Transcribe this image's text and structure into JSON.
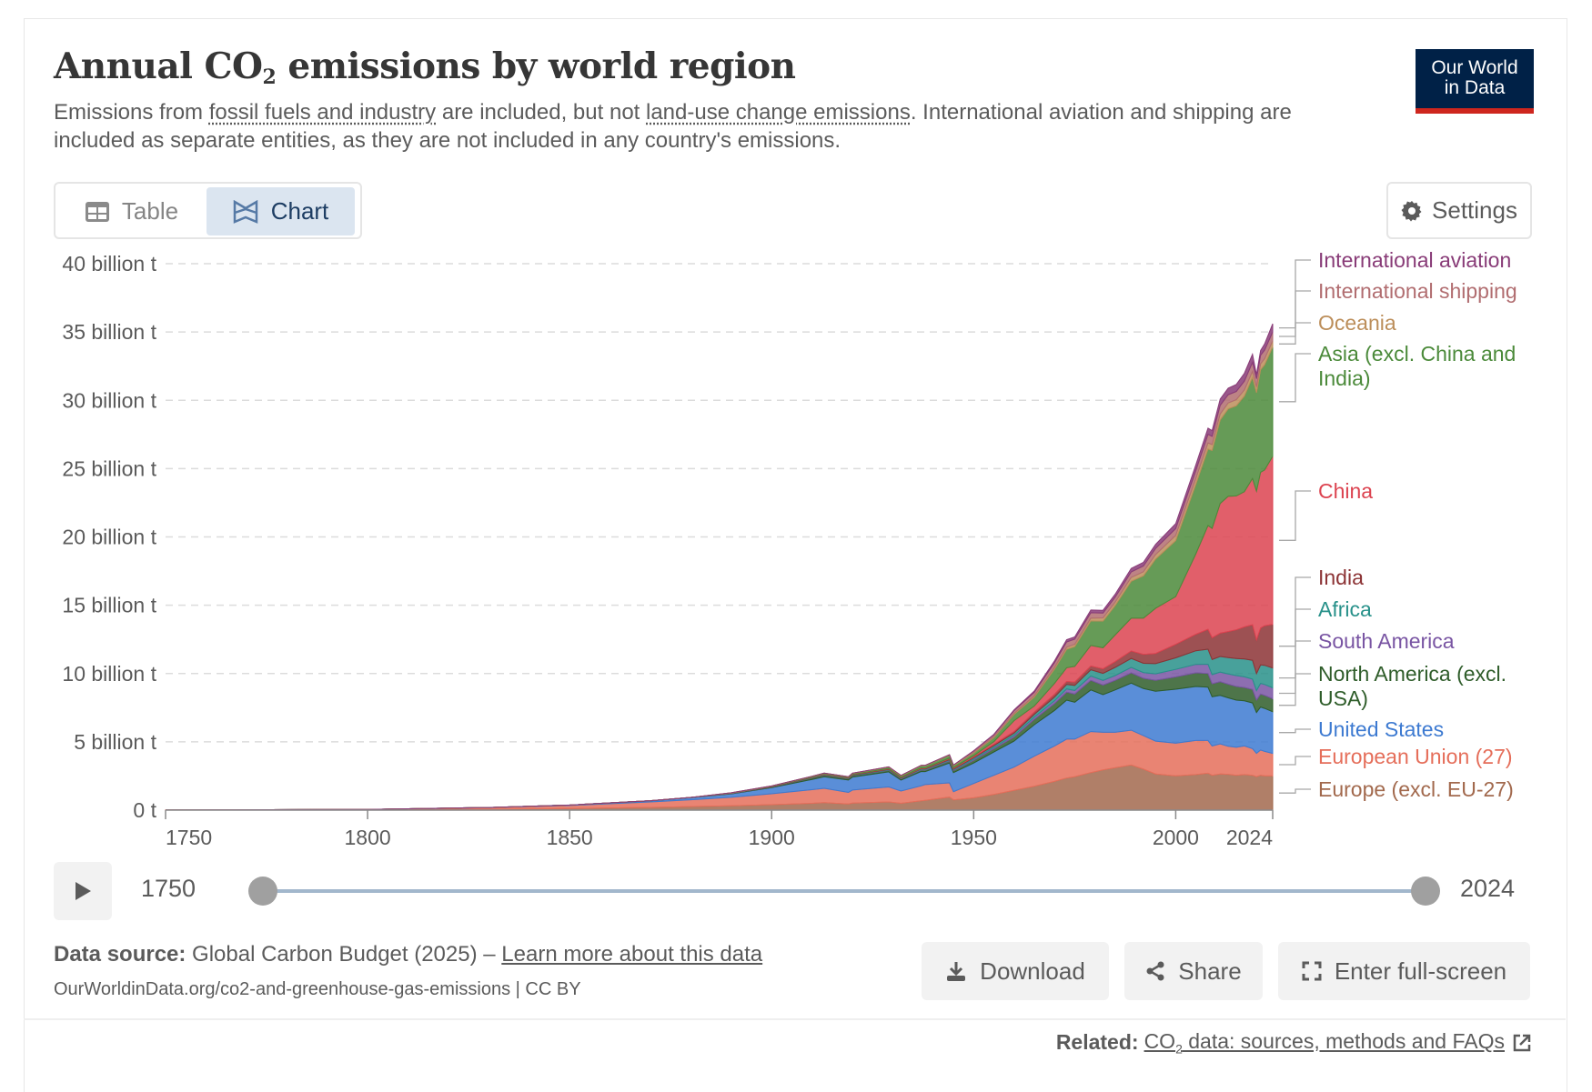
{
  "header": {
    "title_prefix": "Annual CO",
    "title_sub": "2",
    "title_suffix": " emissions by world region",
    "subtitle_parts": {
      "p1": "Emissions from ",
      "link1": "fossil fuels and industry",
      "p2": " are included, but not ",
      "link2": "land-use change emissions",
      "p3": ". International aviation and shipping are included as separate entities, as they are not included in any country's emissions."
    },
    "logo_line1": "Our World",
    "logo_line2": "in Data"
  },
  "tabs": {
    "table_label": "Table",
    "chart_label": "Chart",
    "active": "Chart"
  },
  "settings_label": "Settings",
  "timeline": {
    "start_label": "1750",
    "end_label": "2024",
    "start_value": 1750,
    "end_value": 2024
  },
  "footer": {
    "source_label": "Data source:",
    "source_text": " Global Carbon Budget (2025) – ",
    "learn_more": "Learn more about this data",
    "url_text": "OurWorldinData.org/co2-and-greenhouse-gas-emissions | CC BY",
    "download_label": "Download",
    "share_label": "Share",
    "fullscreen_label": "Enter full-screen",
    "related_label": "Related:",
    "related_link_prefix": "CO",
    "related_link_sub": "2",
    "related_link_suffix": " data: sources, methods and FAQs"
  },
  "chart_data": {
    "type": "area",
    "stacked": true,
    "title": "Annual CO2 emissions by world region",
    "xlabel": "",
    "ylabel": "",
    "xlim": [
      1750,
      2024
    ],
    "ylim": [
      0,
      40
    ],
    "unit": "billion t",
    "x_ticks": [
      1750,
      1800,
      1850,
      1900,
      1950,
      2000,
      2024
    ],
    "y_ticks": [
      0,
      5,
      10,
      15,
      20,
      25,
      30,
      35,
      40
    ],
    "y_tick_labels": [
      "0 t",
      "5 billion t",
      "10 billion t",
      "15 billion t",
      "20 billion t",
      "25 billion t",
      "30 billion t",
      "35 billion t",
      "40 billion t"
    ],
    "grid": "horizontal-dashed",
    "legend": "right-inline",
    "x": [
      1750,
      1800,
      1830,
      1850,
      1870,
      1880,
      1890,
      1900,
      1910,
      1913,
      1919,
      1920,
      1929,
      1932,
      1937,
      1938,
      1944,
      1945,
      1950,
      1955,
      1960,
      1965,
      1970,
      1973,
      1975,
      1979,
      1982,
      1985,
      1989,
      1992,
      1995,
      2000,
      2005,
      2008,
      2009,
      2011,
      2013,
      2015,
      2017,
      2019,
      2020,
      2021,
      2022,
      2024
    ],
    "series": [
      {
        "name": "Europe (excl. EU-27)",
        "color": "#a2694d",
        "values": [
          0.0,
          0.02,
          0.06,
          0.12,
          0.2,
          0.26,
          0.32,
          0.4,
          0.5,
          0.55,
          0.45,
          0.52,
          0.6,
          0.5,
          0.68,
          0.72,
          0.95,
          0.75,
          0.9,
          1.15,
          1.45,
          1.75,
          2.1,
          2.35,
          2.45,
          2.75,
          2.95,
          3.1,
          3.3,
          3.0,
          2.65,
          2.5,
          2.6,
          2.7,
          2.55,
          2.65,
          2.62,
          2.55,
          2.6,
          2.55,
          2.45,
          2.55,
          2.5,
          2.5
        ]
      },
      {
        "name": "European Union (27)",
        "color": "#e56e5a",
        "values": [
          0.01,
          0.03,
          0.12,
          0.22,
          0.4,
          0.5,
          0.62,
          0.8,
          1.0,
          1.05,
          0.85,
          0.95,
          1.1,
          0.9,
          1.1,
          1.15,
          1.05,
          0.6,
          1.05,
          1.4,
          1.7,
          2.2,
          2.6,
          2.85,
          2.75,
          3.0,
          2.75,
          2.6,
          2.55,
          2.45,
          2.4,
          2.4,
          2.5,
          2.4,
          2.15,
          2.2,
          2.05,
          2.05,
          2.1,
          1.95,
          1.7,
          1.85,
          1.8,
          1.65
        ]
      },
      {
        "name": "United States",
        "color": "#3d7ad1",
        "values": [
          0.0,
          0.0,
          0.01,
          0.03,
          0.08,
          0.15,
          0.25,
          0.45,
          0.75,
          0.85,
          0.9,
          0.95,
          1.1,
          0.8,
          1.05,
          0.95,
          1.45,
          1.4,
          1.5,
          1.7,
          1.9,
          2.3,
          2.6,
          2.85,
          2.7,
          3.05,
          2.75,
          3.1,
          3.45,
          3.45,
          3.65,
          3.95,
          3.95,
          3.9,
          3.6,
          3.55,
          3.55,
          3.45,
          3.3,
          3.35,
          3.0,
          3.15,
          3.15,
          3.05
        ]
      },
      {
        "name": "North America (excl. USA)",
        "color": "#2f5d2a",
        "values": [
          0.0,
          0.0,
          0.0,
          0.0,
          0.01,
          0.02,
          0.03,
          0.05,
          0.1,
          0.11,
          0.1,
          0.11,
          0.12,
          0.09,
          0.11,
          0.11,
          0.15,
          0.15,
          0.2,
          0.25,
          0.3,
          0.4,
          0.5,
          0.58,
          0.6,
          0.7,
          0.7,
          0.7,
          0.75,
          0.75,
          0.8,
          0.9,
          1.0,
          1.0,
          0.95,
          1.0,
          1.0,
          1.0,
          0.98,
          0.98,
          0.9,
          0.95,
          0.95,
          0.95
        ]
      },
      {
        "name": "South America",
        "color": "#7955a3",
        "values": [
          0.0,
          0.0,
          0.0,
          0.0,
          0.0,
          0.0,
          0.01,
          0.01,
          0.02,
          0.02,
          0.02,
          0.02,
          0.03,
          0.03,
          0.04,
          0.04,
          0.05,
          0.05,
          0.08,
          0.1,
          0.13,
          0.16,
          0.2,
          0.24,
          0.26,
          0.32,
          0.34,
          0.35,
          0.4,
          0.42,
          0.48,
          0.55,
          0.62,
          0.68,
          0.67,
          0.7,
          0.75,
          0.8,
          0.78,
          0.76,
          0.7,
          0.78,
          0.8,
          0.8
        ]
      },
      {
        "name": "Africa",
        "color": "#28918a",
        "values": [
          0.0,
          0.0,
          0.0,
          0.0,
          0.0,
          0.0,
          0.01,
          0.01,
          0.02,
          0.02,
          0.02,
          0.02,
          0.03,
          0.03,
          0.04,
          0.04,
          0.05,
          0.05,
          0.1,
          0.12,
          0.15,
          0.2,
          0.28,
          0.33,
          0.37,
          0.45,
          0.52,
          0.6,
          0.65,
          0.68,
          0.74,
          0.85,
          1.0,
          1.1,
          1.1,
          1.15,
          1.2,
          1.25,
          1.3,
          1.38,
          1.25,
          1.35,
          1.4,
          1.45
        ]
      },
      {
        "name": "India",
        "color": "#8c3335",
        "values": [
          0.0,
          0.0,
          0.0,
          0.0,
          0.0,
          0.0,
          0.01,
          0.02,
          0.03,
          0.03,
          0.03,
          0.04,
          0.04,
          0.04,
          0.05,
          0.05,
          0.06,
          0.06,
          0.07,
          0.09,
          0.12,
          0.16,
          0.2,
          0.22,
          0.24,
          0.28,
          0.33,
          0.42,
          0.55,
          0.65,
          0.75,
          0.98,
          1.2,
          1.45,
          1.6,
          1.7,
          1.9,
          2.1,
          2.35,
          2.6,
          2.45,
          2.7,
          2.9,
          3.2
        ]
      },
      {
        "name": "China",
        "color": "#dc4350",
        "values": [
          0.0,
          0.0,
          0.0,
          0.0,
          0.0,
          0.0,
          0.0,
          0.0,
          0.0,
          0.01,
          0.01,
          0.01,
          0.02,
          0.02,
          0.03,
          0.03,
          0.05,
          0.05,
          0.08,
          0.2,
          0.8,
          0.45,
          0.8,
          1.0,
          1.15,
          1.5,
          1.55,
          1.95,
          2.4,
          2.65,
          3.3,
          3.5,
          5.9,
          7.6,
          8.0,
          9.5,
          9.9,
          9.8,
          9.9,
          10.7,
          10.9,
          11.4,
          11.4,
          12.3
        ]
      },
      {
        "name": "Asia (excl. China and India)",
        "color": "#4b8a3a",
        "values": [
          0.0,
          0.0,
          0.0,
          0.0,
          0.0,
          0.0,
          0.01,
          0.02,
          0.04,
          0.05,
          0.05,
          0.06,
          0.1,
          0.1,
          0.15,
          0.16,
          0.2,
          0.15,
          0.2,
          0.3,
          0.45,
          0.65,
          1.05,
          1.35,
          1.45,
          1.8,
          1.95,
          2.15,
          2.7,
          3.1,
          3.6,
          4.1,
          5.1,
          5.6,
          5.7,
          6.1,
          6.4,
          6.6,
          7.0,
          7.4,
          7.2,
          7.5,
          7.7,
          8.0
        ]
      },
      {
        "name": "Oceania",
        "color": "#bc8e5a",
        "values": [
          0.0,
          0.0,
          0.0,
          0.0,
          0.0,
          0.0,
          0.01,
          0.01,
          0.02,
          0.02,
          0.02,
          0.02,
          0.03,
          0.03,
          0.03,
          0.03,
          0.04,
          0.04,
          0.05,
          0.06,
          0.08,
          0.1,
          0.13,
          0.16,
          0.17,
          0.2,
          0.23,
          0.25,
          0.29,
          0.3,
          0.33,
          0.38,
          0.42,
          0.45,
          0.44,
          0.45,
          0.44,
          0.44,
          0.45,
          0.45,
          0.43,
          0.44,
          0.44,
          0.45
        ]
      },
      {
        "name": "International shipping",
        "color": "#b16d70",
        "values": [
          0.0,
          0.0,
          0.0,
          0.0,
          0.0,
          0.0,
          0.0,
          0.0,
          0.0,
          0.0,
          0.0,
          0.0,
          0.0,
          0.0,
          0.0,
          0.0,
          0.0,
          0.0,
          0.1,
          0.14,
          0.2,
          0.25,
          0.33,
          0.38,
          0.37,
          0.4,
          0.36,
          0.36,
          0.4,
          0.42,
          0.45,
          0.5,
          0.58,
          0.63,
          0.6,
          0.63,
          0.6,
          0.6,
          0.65,
          0.65,
          0.6,
          0.63,
          0.63,
          0.65
        ]
      },
      {
        "name": "International aviation",
        "color": "#883b77",
        "values": [
          0.0,
          0.0,
          0.0,
          0.0,
          0.0,
          0.0,
          0.0,
          0.0,
          0.0,
          0.0,
          0.0,
          0.0,
          0.0,
          0.0,
          0.0,
          0.0,
          0.0,
          0.0,
          0.02,
          0.04,
          0.06,
          0.1,
          0.14,
          0.17,
          0.17,
          0.2,
          0.2,
          0.22,
          0.26,
          0.27,
          0.3,
          0.36,
          0.42,
          0.45,
          0.43,
          0.46,
          0.48,
          0.52,
          0.57,
          0.6,
          0.3,
          0.35,
          0.45,
          0.6
        ]
      }
    ]
  }
}
